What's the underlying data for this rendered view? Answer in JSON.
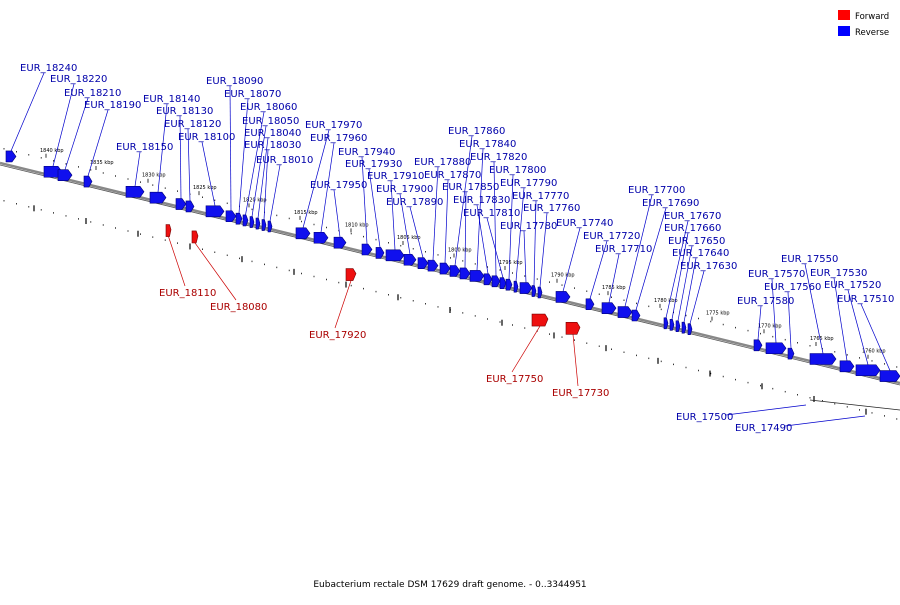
{
  "legend": {
    "forward_label": "Forward",
    "reverse_label": "Reverse",
    "forward_color": "#ff0000",
    "reverse_color": "#0000ff"
  },
  "caption": "Eubacterium rectale DSM 17629 draft genome. - 0..3344951",
  "kbp_marks": [
    "1840 kbp",
    "1835 kbp",
    "1830 kbp",
    "1825 kbp",
    "1820 kbp",
    "1815 kbp",
    "1810 kbp",
    "1805 kbp",
    "1800 kbp",
    "1795 kbp",
    "1790 kbp",
    "1785 kbp",
    "1780 kbp",
    "1775 kbp",
    "1770 kbp",
    "1765 kbp",
    "1760 kbp"
  ],
  "genes_reverse": [
    "EUR_18240",
    "EUR_18220",
    "EUR_18210",
    "EUR_18190",
    "EUR_18150",
    "EUR_18140",
    "EUR_18130",
    "EUR_18120",
    "EUR_18100",
    "EUR_18090",
    "EUR_18070",
    "EUR_18060",
    "EUR_18050",
    "EUR_18040",
    "EUR_18030",
    "EUR_18010",
    "EUR_17970",
    "EUR_17960",
    "EUR_17950",
    "EUR_17940",
    "EUR_17930",
    "EUR_17910",
    "EUR_17900",
    "EUR_17890",
    "EUR_17880",
    "EUR_17870",
    "EUR_17860",
    "EUR_17850",
    "EUR_17840",
    "EUR_17830",
    "EUR_17820",
    "EUR_17810",
    "EUR_17800",
    "EUR_17790",
    "EUR_17780",
    "EUR_17770",
    "EUR_17760",
    "EUR_17740",
    "EUR_17720",
    "EUR_17710",
    "EUR_17700",
    "EUR_17690",
    "EUR_17670",
    "EUR_17660",
    "EUR_17650",
    "EUR_17640",
    "EUR_17630",
    "EUR_17580",
    "EUR_17570",
    "EUR_17560",
    "EUR_17550",
    "EUR_17530",
    "EUR_17520",
    "EUR_17510",
    "EUR_17500",
    "EUR_17490"
  ],
  "genes_forward": [
    "EUR_18110",
    "EUR_18080",
    "EUR_17920",
    "EUR_17750",
    "EUR_17730"
  ]
}
